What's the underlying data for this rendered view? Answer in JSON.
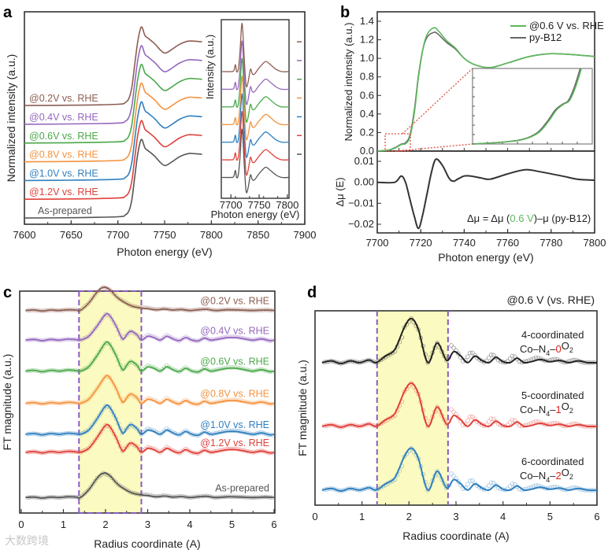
{
  "watermark": "大数跨境",
  "chart_data": [
    {
      "panel": "a",
      "type": "line",
      "title": "",
      "xlabel": "Photon energy (eV)",
      "ylabel": "Normalized intensity (a.u.)",
      "xlim": [
        7600,
        7900
      ],
      "ylim": [
        -0.1,
        3.3
      ],
      "xticks": [
        "7600",
        "7650",
        "7700",
        "7750",
        "7800",
        "7850",
        "7900"
      ],
      "shape": [
        [
          7600,
          0
        ],
        [
          7650,
          0.005
        ],
        [
          7700,
          0.02
        ],
        [
          7708,
          0.05
        ],
        [
          7712,
          0.12
        ],
        [
          7715,
          0.3
        ],
        [
          7718,
          0.65
        ],
        [
          7721,
          1.0
        ],
        [
          7724,
          1.22
        ],
        [
          7726,
          1.25
        ],
        [
          7729,
          1.12
        ],
        [
          7733,
          1.07
        ],
        [
          7740,
          0.98
        ],
        [
          7746,
          0.88
        ],
        [
          7751,
          0.84
        ],
        [
          7758,
          0.9
        ],
        [
          7766,
          0.98
        ],
        [
          7775,
          1.03
        ],
        [
          7782,
          1.03
        ],
        [
          7790,
          1.02
        ]
      ],
      "series": [
        {
          "name": "As-prepared",
          "color": "#555555",
          "offset": 0
        },
        {
          "name": "@1.2V vs. RHE",
          "color": "#e0413a",
          "offset": 0.3
        },
        {
          "name": "@1.0V vs. RHE",
          "color": "#2f7fbf",
          "offset": 0.6
        },
        {
          "name": "@0.8V vs. RHE",
          "color": "#f5923e",
          "offset": 0.9
        },
        {
          "name": "@0.6V vs. RHE",
          "color": "#4aa84a",
          "offset": 1.2
        },
        {
          "name": "@0.4V vs. RHE",
          "color": "#9467bd",
          "offset": 1.5
        },
        {
          "name": "@0.2V vs. RHE",
          "color": "#8c5e52",
          "offset": 1.8
        }
      ],
      "inset": {
        "xlabel": "Photon energy (eV)",
        "ylabel": "Intensity (a.u.)",
        "xlim": [
          7683,
          7803
        ],
        "ylim": [
          -0.45,
          3.4
        ],
        "xticks": [
          "7700",
          "7750",
          "7800"
        ],
        "shape": [
          [
            7683,
            0
          ],
          [
            7700,
            0
          ],
          [
            7705,
            0.02
          ],
          [
            7708,
            0.15
          ],
          [
            7710,
            0
          ],
          [
            7713,
            0.05
          ],
          [
            7716,
            0.4
          ],
          [
            7719,
            1.0
          ],
          [
            7721,
            0.9
          ],
          [
            7724,
            0.2
          ],
          [
            7727,
            -0.3
          ],
          [
            7730,
            -0.25
          ],
          [
            7733,
            -0.05
          ],
          [
            7735,
            0.06
          ],
          [
            7738,
            -0.05
          ],
          [
            7742,
            -0.05
          ],
          [
            7748,
            0.05
          ],
          [
            7755,
            0.15
          ],
          [
            7762,
            0.22
          ],
          [
            7770,
            0.15
          ],
          [
            7780,
            0.05
          ],
          [
            7790,
            0
          ],
          [
            7803,
            0
          ]
        ],
        "offsets": [
          0,
          0.38,
          0.76,
          1.14,
          1.52,
          1.9,
          2.28
        ]
      }
    },
    {
      "panel": "b",
      "type": "line",
      "xlabel": "Photon energy (eV)",
      "ylabel": "Normalized intensity (a.u.)",
      "ylabel_bottom": "Δμ (E)",
      "xlim": [
        7700,
        7800
      ],
      "ylim": [
        0,
        1.48
      ],
      "ylim_bottom": [
        -0.024,
        0.0147
      ],
      "xticks": [
        "7700",
        "7720",
        "7740",
        "7760",
        "7780",
        "7800"
      ],
      "yticks": [
        "0.0",
        "0.2",
        "0.4",
        "0.6",
        "0.8",
        "1.0",
        "1.2",
        "1.4"
      ],
      "yticks_bottom": [
        "−0.02",
        "−0.01",
        "0.00",
        "0.01"
      ],
      "series": [
        {
          "name": "@0.6 V vs. RHE",
          "color": "#5cb85c",
          "values": [
            [
              7700,
              0
            ],
            [
              7705,
              0.01
            ],
            [
              7708,
              0.03
            ],
            [
              7711,
              0.07
            ],
            [
              7713,
              0.08
            ],
            [
              7715,
              0.15
            ],
            [
              7717,
              0.4
            ],
            [
              7719,
              0.8
            ],
            [
              7721,
              1.1
            ],
            [
              7723,
              1.26
            ],
            [
              7726,
              1.33
            ],
            [
              7728,
              1.3
            ],
            [
              7732,
              1.19
            ],
            [
              7736,
              1.11
            ],
            [
              7740,
              1.0
            ],
            [
              7745,
              0.93
            ],
            [
              7752,
              0.9
            ],
            [
              7760,
              0.95
            ],
            [
              7770,
              1.02
            ],
            [
              7780,
              1.05
            ],
            [
              7790,
              1.04
            ],
            [
              7800,
              1.02
            ]
          ]
        },
        {
          "name": "py-B12",
          "color": "#666666",
          "values": [
            [
              7700,
              0
            ],
            [
              7705,
              0.01
            ],
            [
              7708,
              0.035
            ],
            [
              7711,
              0.075
            ],
            [
              7713,
              0.09
            ],
            [
              7715,
              0.17
            ],
            [
              7717,
              0.43
            ],
            [
              7719,
              0.82
            ],
            [
              7721,
              1.1
            ],
            [
              7723,
              1.23
            ],
            [
              7726,
              1.28
            ],
            [
              7728,
              1.26
            ],
            [
              7732,
              1.17
            ],
            [
              7736,
              1.1
            ],
            [
              7740,
              1.0
            ],
            [
              7745,
              0.93
            ],
            [
              7752,
              0.9
            ],
            [
              7760,
              0.95
            ],
            [
              7770,
              1.02
            ],
            [
              7780,
              1.05
            ],
            [
              7790,
              1.04
            ],
            [
              7800,
              1.02
            ]
          ]
        }
      ],
      "difference": {
        "formula_prefix": "Δμ = Δμ (",
        "formula_highlight": "0.6 V",
        "formula_suffix": ")–μ (py-B12)",
        "highlight_color": "#5cb85c",
        "values": [
          [
            7700,
            0
          ],
          [
            7708,
            0
          ],
          [
            7711,
            0.003
          ],
          [
            7713,
            0
          ],
          [
            7715,
            -0.008
          ],
          [
            7717,
            -0.016
          ],
          [
            7719,
            -0.022
          ],
          [
            7721,
            -0.015
          ],
          [
            7723,
            -0.005
          ],
          [
            7725,
            0.005
          ],
          [
            7727,
            0.011
          ],
          [
            7730,
            0.008
          ],
          [
            7733,
            0.002
          ],
          [
            7735,
            0.0005
          ],
          [
            7737,
            0.0015
          ],
          [
            7740,
            0.003
          ],
          [
            7743,
            0.003
          ],
          [
            7748,
            0.002
          ],
          [
            7752,
            0.0015
          ],
          [
            7760,
            0.004
          ],
          [
            7768,
            0.006
          ],
          [
            7775,
            0.005
          ],
          [
            7785,
            0.003
          ],
          [
            7792,
            0.0015
          ],
          [
            7800,
            0.001
          ]
        ]
      },
      "inset": {
        "xlim": [
          7704,
          7716
        ],
        "ylim": [
          0,
          0.2
        ],
        "values": [
          [
            7704,
            0.0
          ],
          [
            7707,
            0.005
          ],
          [
            7709,
            0.012
          ],
          [
            7710.5,
            0.03
          ],
          [
            7711.5,
            0.06
          ],
          [
            7712.3,
            0.09
          ],
          [
            7713,
            0.105
          ],
          [
            7713.6,
            0.115
          ],
          [
            7714.2,
            0.15
          ],
          [
            7714.8,
            0.2
          ]
        ]
      }
    },
    {
      "panel": "c",
      "type": "line",
      "xlabel": "Radius coordinate (A)",
      "ylabel": "FT magnitude (a.u.)",
      "xlim": [
        0,
        6
      ],
      "ylim": [
        -0.3,
        8.3
      ],
      "xticks": [
        "0",
        "1",
        "2",
        "3",
        "4",
        "5",
        "6"
      ],
      "highlight_region": [
        1.37,
        2.85
      ],
      "shapes": {
        "split": [
          [
            0.1,
            0
          ],
          [
            0.3,
            0.03
          ],
          [
            0.5,
            -0.02
          ],
          [
            0.7,
            0.03
          ],
          [
            0.9,
            0
          ],
          [
            1.1,
            0.04
          ],
          [
            1.3,
            0.02
          ],
          [
            1.4,
            0
          ],
          [
            1.6,
            0.15
          ],
          [
            1.8,
            0.55
          ],
          [
            2.0,
            1.0
          ],
          [
            2.1,
            0.95
          ],
          [
            2.25,
            0.55
          ],
          [
            2.4,
            0.05
          ],
          [
            2.5,
            0.2
          ],
          [
            2.6,
            0.35
          ],
          [
            2.75,
            0.2
          ],
          [
            2.85,
            0
          ],
          [
            3.0,
            0.15
          ],
          [
            3.15,
            0.1
          ],
          [
            3.3,
            0
          ],
          [
            3.45,
            0.15
          ],
          [
            3.6,
            0.05
          ],
          [
            3.75,
            -0.02
          ],
          [
            3.9,
            0.1
          ],
          [
            4.05,
            0
          ],
          [
            4.2,
            -0.03
          ],
          [
            4.35,
            0.08
          ],
          [
            4.5,
            0
          ],
          [
            4.7,
            0.05
          ],
          [
            4.9,
            0.1
          ],
          [
            5.1,
            0.1
          ],
          [
            5.3,
            0.05
          ],
          [
            5.5,
            0
          ],
          [
            5.7,
            0.05
          ],
          [
            5.9,
            -0.02
          ],
          [
            6.0,
            0
          ]
        ],
        "broad": [
          [
            0.1,
            0
          ],
          [
            0.3,
            0.02
          ],
          [
            0.5,
            -0.02
          ],
          [
            0.7,
            0.02
          ],
          [
            0.9,
            0
          ],
          [
            1.1,
            0.03
          ],
          [
            1.3,
            0.02
          ],
          [
            1.4,
            0
          ],
          [
            1.6,
            0.3
          ],
          [
            1.8,
            0.75
          ],
          [
            1.95,
            0.95
          ],
          [
            2.1,
            0.85
          ],
          [
            2.3,
            0.5
          ],
          [
            2.6,
            0.2
          ],
          [
            2.85,
            0.1
          ],
          [
            3.0,
            0.08
          ],
          [
            3.2,
            0.03
          ],
          [
            3.4,
            0.06
          ],
          [
            3.6,
            0.02
          ],
          [
            3.8,
            0.04
          ],
          [
            4.0,
            0
          ],
          [
            4.2,
            0.03
          ],
          [
            4.4,
            0.05
          ],
          [
            4.6,
            0
          ],
          [
            4.9,
            0.03
          ],
          [
            5.2,
            0.02
          ],
          [
            5.5,
            0
          ],
          [
            5.8,
            0.02
          ],
          [
            6.0,
            0
          ]
        ]
      },
      "series": [
        {
          "name": "As-prepared",
          "color": "#555555",
          "offset": 0.3,
          "shape": "broad",
          "scale": 1.0
        },
        {
          "name": "@1.2V vs. RHE",
          "color": "#e0413a",
          "offset": 2.05,
          "shape": "split",
          "scale": 1.05
        },
        {
          "name": "@1.0V vs. RHE",
          "color": "#2f7fbf",
          "offset": 2.75,
          "shape": "split",
          "scale": 1.1
        },
        {
          "name": "@0.8V vs. RHE",
          "color": "#f5923e",
          "offset": 3.95,
          "shape": "split",
          "scale": 1.05
        },
        {
          "name": "@0.6V vs. RHE",
          "color": "#4aa84a",
          "offset": 5.2,
          "shape": "split",
          "scale": 1.1
        },
        {
          "name": "@0.4V vs. RHE",
          "color": "#9467bd",
          "offset": 6.4,
          "shape": "split",
          "scale": 1.0
        },
        {
          "name": "@0.2V vs. RHE",
          "color": "#8c5e52",
          "offset": 7.55,
          "shape": "broad",
          "scale": 0.95
        }
      ]
    },
    {
      "panel": "d",
      "type": "line",
      "title": "@0.6 V (vs. RHE)",
      "xlabel": "Radius coordinate (A)",
      "ylabel": "FT magnitude (a.u.)",
      "xlim": [
        0,
        6
      ],
      "ylim": [
        0,
        7.5
      ],
      "xticks": [
        "0",
        "1",
        "2",
        "3",
        "4",
        "5",
        "6"
      ],
      "highlight_region": [
        1.32,
        2.83
      ],
      "shape": [
        [
          0.15,
          0
        ],
        [
          0.35,
          0.04
        ],
        [
          0.55,
          -0.02
        ],
        [
          0.75,
          0.04
        ],
        [
          0.95,
          0
        ],
        [
          1.15,
          0.06
        ],
        [
          1.3,
          0
        ],
        [
          1.5,
          0.15
        ],
        [
          1.7,
          0.3
        ],
        [
          1.9,
          0.8
        ],
        [
          2.05,
          1.0
        ],
        [
          2.2,
          0.75
        ],
        [
          2.4,
          0
        ],
        [
          2.6,
          0.45
        ],
        [
          2.8,
          0.05
        ],
        [
          2.95,
          0.25
        ],
        [
          3.1,
          0.15
        ],
        [
          3.25,
          0
        ],
        [
          3.4,
          0.15
        ],
        [
          3.55,
          0.05
        ],
        [
          3.7,
          0
        ],
        [
          3.85,
          0.12
        ],
        [
          4.0,
          0.02
        ],
        [
          4.15,
          0
        ],
        [
          4.3,
          0.1
        ],
        [
          4.45,
          0
        ],
        [
          4.6,
          0.02
        ],
        [
          4.8,
          0.07
        ],
        [
          5.0,
          0.02
        ],
        [
          5.2,
          0.05
        ],
        [
          5.4,
          0
        ],
        [
          5.6,
          0.04
        ],
        [
          5.8,
          0
        ],
        [
          6.0,
          0.0
        ]
      ],
      "series": [
        {
          "name": "4-coordinated",
          "formula": [
            "Co–N",
            "4",
            "–",
            "0",
            "O",
            "2"
          ],
          "color": "#222222",
          "offset": 5.5,
          "scale": 1.7
        },
        {
          "name": "5-coordinated",
          "formula": [
            "Co–N",
            "4",
            "–",
            "1",
            "O",
            "2"
          ],
          "color": "#e0413a",
          "offset": 3.04,
          "scale": 1.67
        },
        {
          "name": "6-coordinated",
          "formula": [
            "Co–N",
            "4",
            "–",
            "2",
            "O",
            "2"
          ],
          "color": "#2f7fbf",
          "offset": 0.58,
          "scale": 1.62
        }
      ],
      "formula_highlight_color": "#e0201a"
    }
  ]
}
